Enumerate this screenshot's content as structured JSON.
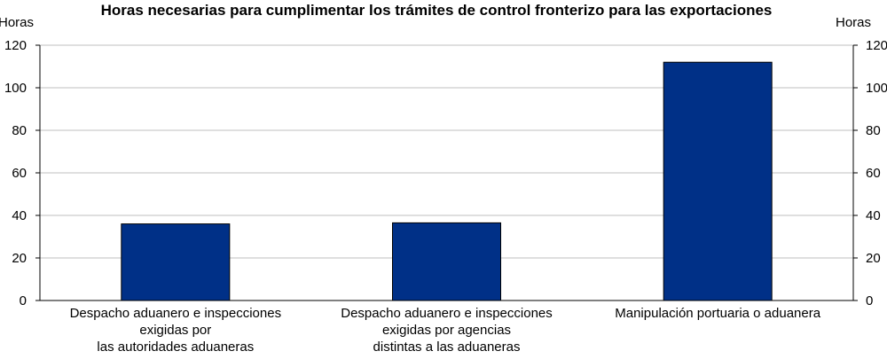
{
  "chart_data": {
    "type": "bar",
    "title": "Horas necesarias para cumplimentar los trámites de control fronterizo para las exportaciones",
    "ylabel_left": "Horas",
    "ylabel_right": "Horas",
    "ylim": [
      0,
      120
    ],
    "yticks": [
      0,
      20,
      40,
      60,
      80,
      100,
      120
    ],
    "grid": true,
    "categories": [
      [
        "Despacho aduanero e inspecciones",
        "exigidas por",
        "las autoridades aduaneras"
      ],
      [
        "Despacho aduanero e inspecciones",
        "exigidas por agencias",
        "distintas a las aduaneras"
      ],
      [
        "Manipulación portuaria o aduanera"
      ]
    ],
    "values": [
      36,
      36.5,
      112
    ],
    "bar_color": "#003087",
    "bar_edge_color": "#000000"
  }
}
